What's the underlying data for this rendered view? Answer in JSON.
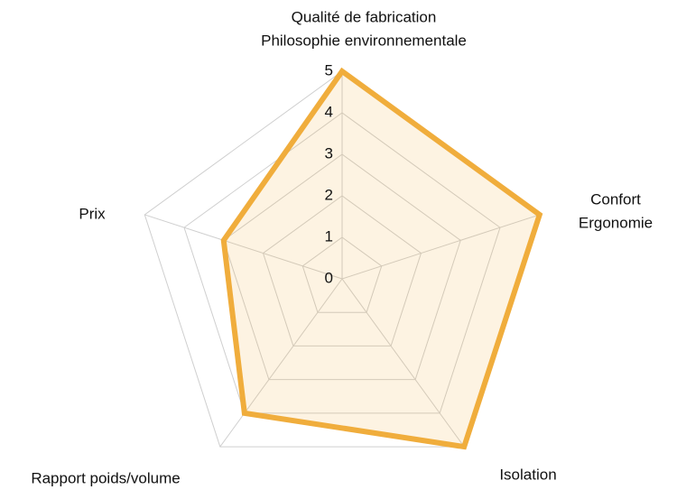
{
  "chart_data": {
    "type": "radar",
    "categories": [
      [
        "Qualité de fabrication",
        "Philosophie environnementale"
      ],
      [
        "Confort",
        "Ergonomie"
      ],
      [
        "Isolation"
      ],
      [
        "Rapport poids/volume"
      ],
      [
        "Prix"
      ]
    ],
    "values": [
      5,
      5,
      5,
      4,
      3
    ],
    "color": "#f0ad3c",
    "ylim": [
      0,
      5
    ],
    "yticks": [
      0,
      1,
      2,
      3,
      4,
      5
    ],
    "grid": true
  }
}
